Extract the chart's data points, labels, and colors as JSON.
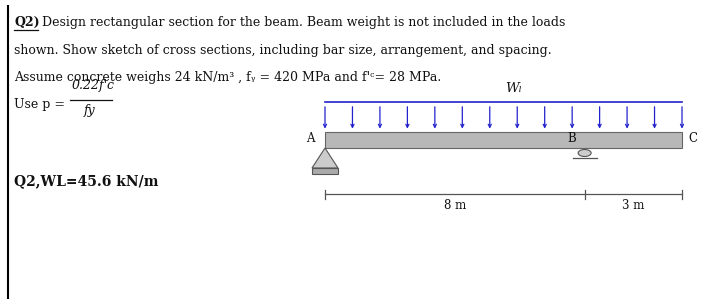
{
  "title_bold": "Q2)",
  "line1": " Design rectangular section for the beam. Beam weight is not included in the loads",
  "line2": "shown. Show sketch of cross sections, including bar size, arrangement, and spacing.",
  "line3": "Assume concrete weighs 24 kN/m³ , fᵧ = 420 MPa and f'ᶜ= 28 MPa.",
  "use_p": "Use p =",
  "frac_num": "0.22f'c",
  "frac_den": "fy",
  "label_q2wl": "Q2,WL=45.6 kN/m",
  "wl_label": "Wₗ",
  "label_A": "A",
  "label_B": "B",
  "label_C": "C",
  "dim_8m": "8 m",
  "dim_3m": "3 m",
  "bg_color": "#ffffff",
  "beam_color": "#b8b8b8",
  "beam_edge_color": "#666666",
  "arrow_color": "#2222cc",
  "dim_line_color": "#555555",
  "text_color": "#111111",
  "support_face": "#cccccc",
  "support_edge": "#555555"
}
